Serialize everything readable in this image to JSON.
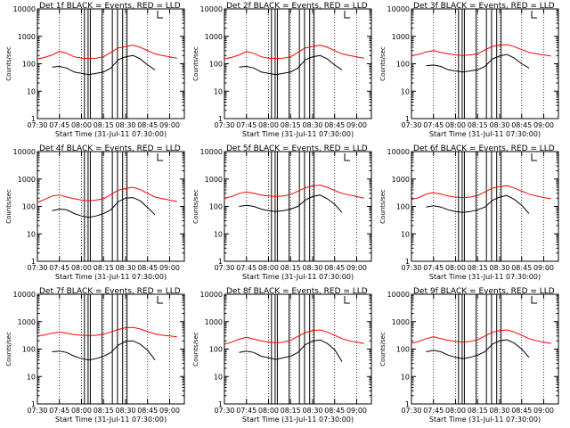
{
  "chart_data": {
    "type": "line",
    "layout": "3x3 grid of panels",
    "shared": {
      "xlabel": "Start Time (31-Jul-11 07:30:00)",
      "ylabel": "Counts/sec",
      "x_ticks": [
        "07:30",
        "07:45",
        "08:00",
        "08:15",
        "08:30",
        "08:45",
        "09:00"
      ],
      "y_ticks": [
        "1",
        "10",
        "100",
        "1000",
        "10000"
      ],
      "ylim": [
        1,
        10000
      ],
      "yscale": "log",
      "xlim_minutes": [
        0,
        100
      ],
      "dotted_vertical_lines_minutes": [
        15,
        30,
        45,
        60,
        75,
        90
      ],
      "solid_vertical_lines_minutes": [
        32,
        34.5,
        36,
        44,
        51,
        54.5,
        58,
        61
      ],
      "colors": {
        "events": "#000000",
        "lld": "#ff0000"
      }
    },
    "panels": [
      {
        "title": "Det 1f BLACK = Events, RED = LLD",
        "lld_x": [
          0,
          5,
          10,
          15,
          20,
          25,
          30,
          35,
          40,
          45,
          50,
          55,
          60,
          65,
          70,
          75,
          80,
          85,
          90,
          95
        ],
        "lld_y": [
          150,
          170,
          210,
          280,
          240,
          180,
          160,
          155,
          160,
          180,
          260,
          380,
          420,
          480,
          400,
          300,
          230,
          200,
          180,
          160
        ],
        "events_x": [
          10,
          15,
          20,
          25,
          30,
          35,
          40,
          45,
          50,
          55,
          60,
          65,
          70,
          75,
          80
        ],
        "events_y": [
          75,
          80,
          70,
          50,
          45,
          40,
          45,
          50,
          70,
          140,
          180,
          200,
          150,
          90,
          60
        ]
      },
      {
        "title": "Det 2f BLACK = Events, RED = LLD",
        "lld_x": [
          0,
          5,
          10,
          15,
          20,
          25,
          30,
          35,
          40,
          45,
          50,
          55,
          60,
          65,
          70,
          75,
          80,
          85,
          90,
          95
        ],
        "lld_y": [
          150,
          170,
          210,
          280,
          240,
          180,
          160,
          155,
          160,
          180,
          260,
          380,
          420,
          480,
          400,
          300,
          230,
          200,
          180,
          160
        ],
        "events_x": [
          10,
          15,
          20,
          25,
          30,
          35,
          40,
          45,
          50,
          55,
          60,
          65,
          70,
          75,
          80
        ],
        "events_y": [
          75,
          80,
          70,
          50,
          45,
          40,
          45,
          50,
          70,
          140,
          180,
          200,
          150,
          90,
          60
        ]
      },
      {
        "title": "Det 3f BLACK = Events, RED = LLD",
        "lld_x": [
          0,
          5,
          10,
          15,
          20,
          25,
          30,
          35,
          40,
          45,
          50,
          55,
          60,
          65,
          70,
          75,
          80,
          85,
          90,
          95
        ],
        "lld_y": [
          200,
          220,
          270,
          300,
          260,
          230,
          210,
          200,
          210,
          230,
          320,
          430,
          480,
          500,
          420,
          330,
          260,
          230,
          210,
          190
        ],
        "events_x": [
          10,
          15,
          20,
          25,
          30,
          35,
          40,
          45,
          50,
          55,
          60,
          65,
          70,
          75,
          80
        ],
        "events_y": [
          85,
          90,
          80,
          60,
          55,
          50,
          55,
          60,
          80,
          150,
          190,
          220,
          160,
          100,
          70
        ]
      },
      {
        "title": "Det 4f BLACK = Events, RED = LLD",
        "lld_x": [
          0,
          5,
          10,
          15,
          20,
          25,
          30,
          35,
          40,
          45,
          50,
          55,
          60,
          65,
          70,
          75,
          80,
          85,
          90,
          95
        ],
        "lld_y": [
          140,
          180,
          240,
          260,
          220,
          190,
          170,
          160,
          170,
          190,
          270,
          390,
          450,
          500,
          410,
          300,
          220,
          190,
          170,
          150
        ],
        "events_x": [
          10,
          15,
          20,
          25,
          30,
          35,
          40,
          45,
          50,
          55,
          60,
          65,
          70,
          75,
          80
        ],
        "events_y": [
          70,
          80,
          75,
          55,
          45,
          40,
          45,
          55,
          75,
          150,
          200,
          210,
          160,
          90,
          50
        ]
      },
      {
        "title": "Det 5f BLACK = Events, RED = LLD",
        "lld_x": [
          0,
          5,
          10,
          15,
          20,
          25,
          30,
          35,
          40,
          45,
          50,
          55,
          60,
          65,
          70,
          75,
          80,
          85,
          90,
          95
        ],
        "lld_y": [
          200,
          230,
          300,
          340,
          300,
          260,
          240,
          230,
          240,
          270,
          360,
          480,
          560,
          600,
          500,
          380,
          300,
          260,
          230,
          200
        ],
        "events_x": [
          10,
          15,
          20,
          25,
          30,
          35,
          40,
          45,
          50,
          55,
          60,
          65,
          70,
          75,
          80
        ],
        "events_y": [
          100,
          110,
          100,
          80,
          70,
          65,
          70,
          80,
          100,
          170,
          230,
          260,
          190,
          120,
          60
        ]
      },
      {
        "title": "Det 6f BLACK = Events, RED = LLD",
        "lld_x": [
          0,
          5,
          10,
          15,
          20,
          25,
          30,
          35,
          40,
          45,
          50,
          55,
          60,
          65,
          70,
          75,
          80,
          85,
          90,
          95
        ],
        "lld_y": [
          180,
          210,
          280,
          320,
          280,
          240,
          220,
          210,
          220,
          250,
          340,
          460,
          530,
          570,
          470,
          360,
          280,
          240,
          210,
          190
        ],
        "events_x": [
          10,
          15,
          20,
          25,
          30,
          35,
          40,
          45,
          50,
          55,
          60,
          65,
          70,
          75,
          80
        ],
        "events_y": [
          95,
          105,
          95,
          75,
          65,
          60,
          65,
          75,
          95,
          165,
          220,
          250,
          180,
          110,
          55
        ]
      },
      {
        "title": "Det 7f BLACK = Events, RED = LLD",
        "lld_x": [
          0,
          5,
          10,
          15,
          20,
          25,
          30,
          35,
          40,
          45,
          50,
          55,
          60,
          65,
          70,
          75,
          80,
          85,
          90,
          95
        ],
        "lld_y": [
          300,
          330,
          380,
          420,
          380,
          340,
          320,
          310,
          320,
          350,
          420,
          520,
          600,
          620,
          540,
          430,
          360,
          320,
          300,
          280
        ],
        "events_x": [
          10,
          15,
          20,
          25,
          30,
          35,
          40,
          45,
          50,
          55,
          60,
          65,
          70,
          75,
          80
        ],
        "events_y": [
          80,
          85,
          75,
          55,
          45,
          40,
          45,
          55,
          75,
          140,
          190,
          200,
          150,
          90,
          40
        ]
      },
      {
        "title": "Det 8f BLACK = Events, RED = LLD",
        "lld_x": [
          0,
          5,
          10,
          15,
          20,
          25,
          30,
          35,
          40,
          45,
          50,
          55,
          60,
          65,
          70,
          75,
          80,
          85,
          90,
          95
        ],
        "lld_y": [
          150,
          180,
          230,
          270,
          230,
          200,
          180,
          170,
          180,
          210,
          290,
          400,
          470,
          500,
          420,
          320,
          240,
          200,
          180,
          160
        ],
        "events_x": [
          10,
          15,
          20,
          25,
          30,
          35,
          40,
          45,
          50,
          55,
          60,
          65,
          70,
          75,
          80
        ],
        "events_y": [
          75,
          85,
          75,
          55,
          48,
          42,
          48,
          55,
          75,
          145,
          195,
          215,
          160,
          95,
          35
        ]
      },
      {
        "title": "Det 9f BLACK = Events, RED = LLD",
        "lld_x": [
          0,
          5,
          10,
          15,
          20,
          25,
          30,
          35,
          40,
          45,
          50,
          55,
          60,
          65,
          70,
          75,
          80,
          85,
          90,
          95
        ],
        "lld_y": [
          160,
          190,
          240,
          280,
          240,
          210,
          190,
          180,
          190,
          220,
          300,
          410,
          470,
          500,
          420,
          320,
          240,
          200,
          180,
          160
        ],
        "events_x": [
          10,
          15,
          20,
          25,
          30,
          35,
          40,
          45,
          50,
          55,
          60,
          65,
          70,
          75,
          80
        ],
        "events_y": [
          80,
          90,
          80,
          60,
          50,
          45,
          50,
          60,
          80,
          150,
          200,
          220,
          165,
          100,
          50
        ]
      }
    ]
  }
}
